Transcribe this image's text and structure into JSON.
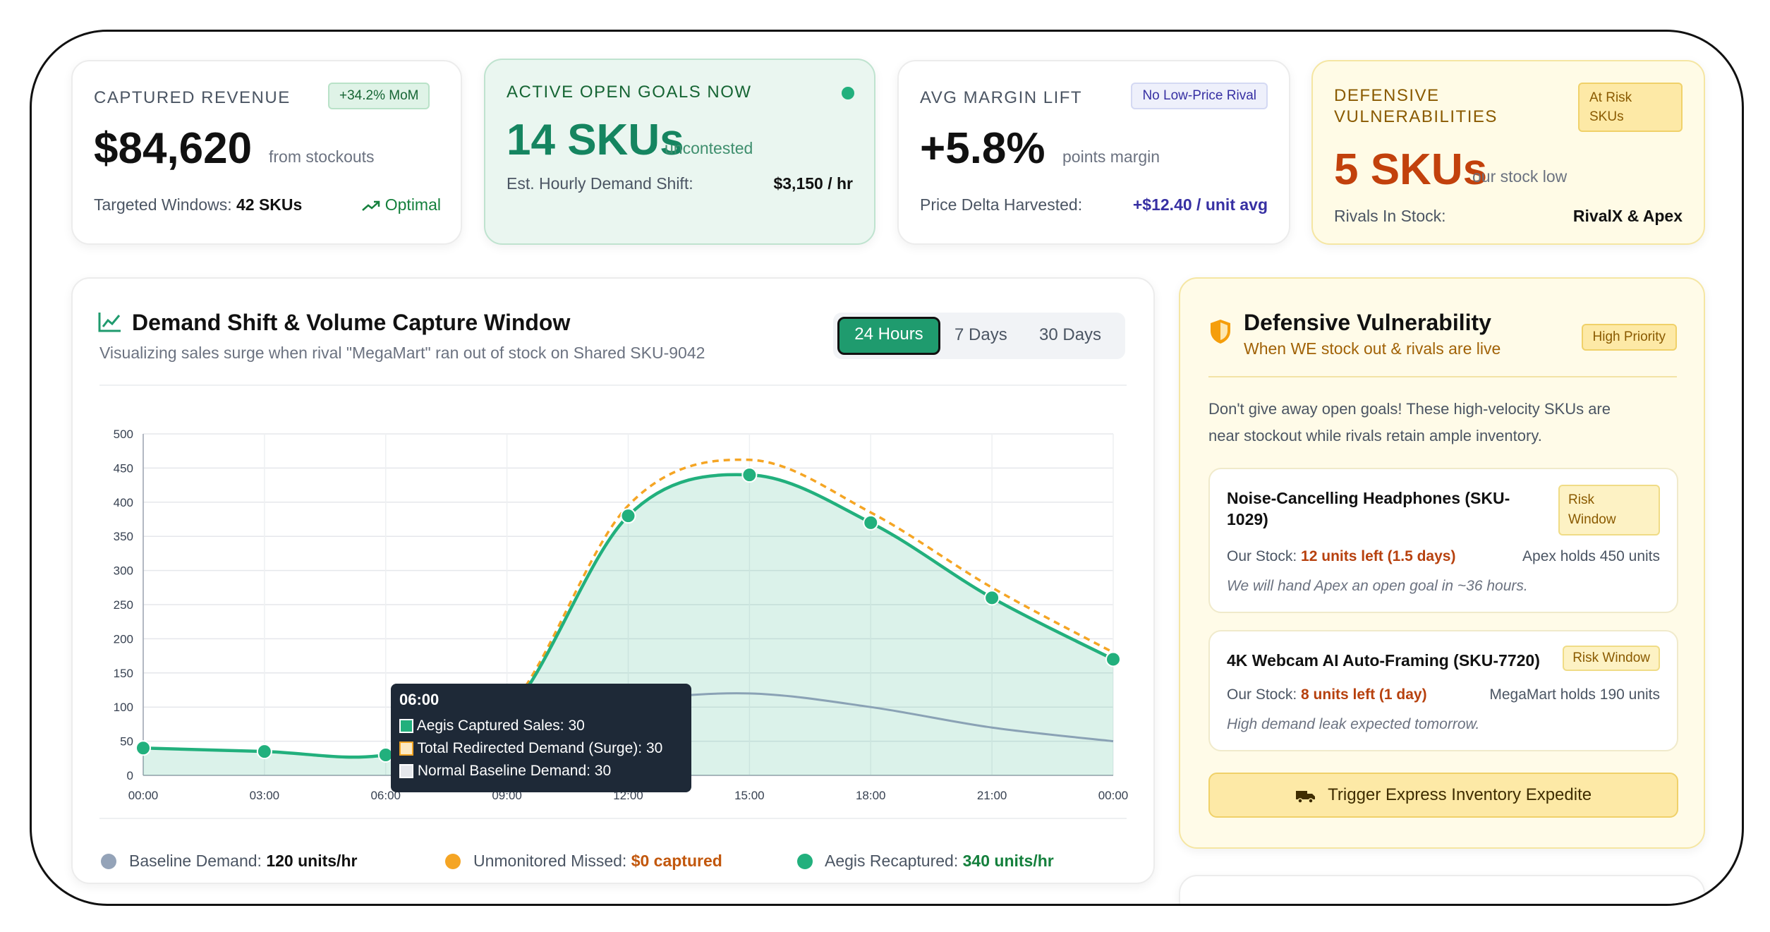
{
  "kpis": {
    "revenue": {
      "label": "CAPTURED REVENUE",
      "badge": "+34.2% MoM",
      "value": "$84,620",
      "suffix": "from stockouts",
      "footer_label": "Targeted Windows:",
      "footer_value": "42 SKUs",
      "trend_label": "Optimal"
    },
    "open_goals": {
      "label": "ACTIVE OPEN GOALS NOW",
      "value": "14 SKUs",
      "suffix": "uncontested",
      "footer_label": "Est. Hourly Demand Shift:",
      "footer_value": "$3,150 / hr"
    },
    "margin": {
      "label": "AVG MARGIN LIFT",
      "badge": "No Low-Price Rival",
      "value": "+5.8%",
      "suffix": "points margin",
      "footer_label": "Price Delta Harvested:",
      "footer_value": "+$12.40 / unit avg"
    },
    "vulnerabilities": {
      "label_line1": "DEFENSIVE",
      "label_line2": "VULNERABILITIES",
      "badge_line1": "At Risk",
      "badge_line2": "SKUs",
      "value": "5 SKUs",
      "suffix": "our stock low",
      "footer_label": "Rivals In Stock:",
      "footer_value": "RivalX & Apex"
    }
  },
  "chart_panel": {
    "title": "Demand Shift & Volume Capture Window",
    "subtitle": "Visualizing sales surge when rival \"MegaMart\" ran out of stock on Shared SKU-9042",
    "tabs": [
      "24 Hours",
      "7 Days",
      "30 Days"
    ],
    "active_tab": "24 Hours",
    "tooltip": {
      "title": "06:00",
      "lines": [
        "Aegis Captured Sales: 30",
        "Total Redirected Demand (Surge): 30",
        "Normal Baseline Demand: 30"
      ]
    },
    "legend": [
      {
        "label": "Baseline Demand:",
        "value": "120 units/hr",
        "color": "#94a3b8",
        "value_color": "#111111"
      },
      {
        "label": "Unmonitored Missed:",
        "value": "$0 captured",
        "color": "#f5a524",
        "value_color": "#c2570c"
      },
      {
        "label": "Aegis Recaptured:",
        "value": "340 units/hr",
        "color": "#22b07d",
        "value_color": "#15803d"
      }
    ]
  },
  "chart_data": {
    "type": "line",
    "x": [
      "00:00",
      "03:00",
      "06:00",
      "09:00",
      "12:00",
      "15:00",
      "18:00",
      "21:00",
      "00:00"
    ],
    "ylim": [
      0,
      500
    ],
    "yticks": [
      0,
      50,
      100,
      150,
      200,
      250,
      300,
      350,
      400,
      450,
      500
    ],
    "grid": true,
    "series": [
      {
        "name": "Aegis Captured Sales",
        "color": "#22b07d",
        "values": [
          40,
          35,
          30,
          90,
          380,
          440,
          370,
          260,
          170
        ]
      },
      {
        "name": "Total Redirected Demand (Surge)",
        "color": "#f5a524",
        "values": [
          40,
          35,
          30,
          95,
          395,
          462,
          385,
          275,
          180
        ]
      },
      {
        "name": "Normal Baseline Demand",
        "color": "#8aa2b5",
        "values": [
          40,
          35,
          30,
          90,
          110,
          120,
          100,
          70,
          50
        ]
      }
    ]
  },
  "defense_panel": {
    "title": "Defensive Vulnerability",
    "subtitle": "When WE stock out & rivals are live",
    "badge": "High Priority",
    "intro_line1": "Don't give away open goals! These high-velocity SKUs are",
    "intro_line2": "near stockout while rivals retain ample inventory.",
    "items": [
      {
        "name_line1": "Noise-Cancelling Headphones (SKU-",
        "name_line2": "1029)",
        "risk_line1": "Risk",
        "risk_line2": "Window",
        "stock_label": "Our Stock:",
        "stock_value": "12 units left (1.5 days)",
        "rival": "Apex holds 450 units",
        "note": "We will hand Apex an open goal in ~36 hours."
      },
      {
        "name_line1": "4K Webcam AI Auto-Framing (SKU-7720)",
        "risk_line1": "Risk Window",
        "stock_label": "Our Stock:",
        "stock_value": "8 units left (1 day)",
        "rival": "MegaMart holds 190 units",
        "note": "High demand leak expected tomorrow."
      }
    ],
    "action_label": "Trigger Express Inventory Expedite"
  }
}
